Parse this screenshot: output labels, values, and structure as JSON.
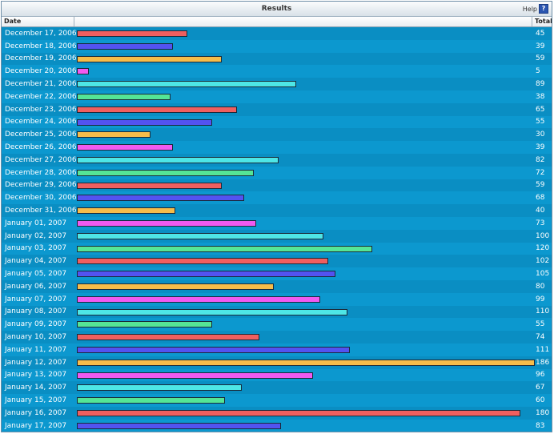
{
  "panel": {
    "title": "Results",
    "help_label": "Help",
    "help_icon_glyph": "?"
  },
  "columns": {
    "date": "Date",
    "total": "Total"
  },
  "colors": [
    "#ef5f5f",
    "#5353f0",
    "#f6bc4a",
    "#f05af0",
    "#4ee6e6",
    "#55e596"
  ],
  "max_value": 186,
  "rows": [
    {
      "date": "December 17, 2006",
      "total": 45
    },
    {
      "date": "December 18, 2006",
      "total": 39
    },
    {
      "date": "December 19, 2006",
      "total": 59
    },
    {
      "date": "December 20, 2006",
      "total": 5
    },
    {
      "date": "December 21, 2006",
      "total": 89
    },
    {
      "date": "December 22, 2006",
      "total": 38
    },
    {
      "date": "December 23, 2006",
      "total": 65
    },
    {
      "date": "December 24, 2006",
      "total": 55
    },
    {
      "date": "December 25, 2006",
      "total": 30
    },
    {
      "date": "December 26, 2006",
      "total": 39
    },
    {
      "date": "December 27, 2006",
      "total": 82
    },
    {
      "date": "December 28, 2006",
      "total": 72
    },
    {
      "date": "December 29, 2006",
      "total": 59
    },
    {
      "date": "December 30, 2006",
      "total": 68
    },
    {
      "date": "December 31, 2006",
      "total": 40
    },
    {
      "date": "January 01, 2007",
      "total": 73
    },
    {
      "date": "January 02, 2007",
      "total": 100
    },
    {
      "date": "January 03, 2007",
      "total": 120
    },
    {
      "date": "January 04, 2007",
      "total": 102
    },
    {
      "date": "January 05, 2007",
      "total": 105
    },
    {
      "date": "January 06, 2007",
      "total": 80
    },
    {
      "date": "January 07, 2007",
      "total": 99
    },
    {
      "date": "January 08, 2007",
      "total": 110
    },
    {
      "date": "January 09, 2007",
      "total": 55
    },
    {
      "date": "January 10, 2007",
      "total": 74
    },
    {
      "date": "January 11, 2007",
      "total": 111
    },
    {
      "date": "January 12, 2007",
      "total": 186
    },
    {
      "date": "January 13, 2007",
      "total": 96
    },
    {
      "date": "January 14, 2007",
      "total": 67
    },
    {
      "date": "January 15, 2007",
      "total": 60
    },
    {
      "date": "January 16, 2007",
      "total": 180
    },
    {
      "date": "January 17, 2007",
      "total": 83
    }
  ]
}
